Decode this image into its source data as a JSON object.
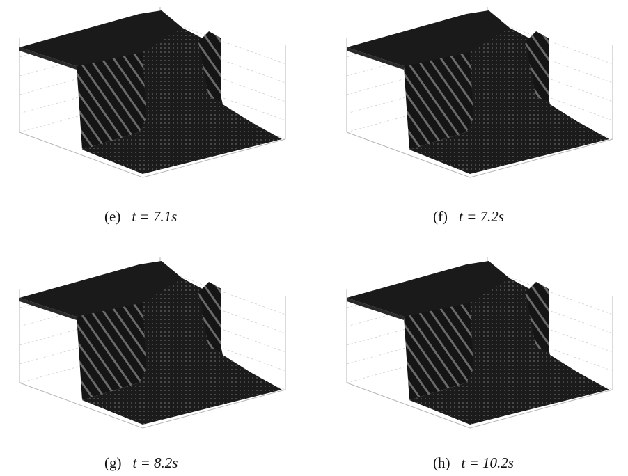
{
  "panels": [
    {
      "label": "(e)",
      "caption": "t = 7.1s"
    },
    {
      "label": "(f)",
      "caption": "t = 7.2s"
    },
    {
      "label": "(g)",
      "caption": "t = 8.2s"
    },
    {
      "label": "(h)",
      "caption": "t = 10.2s"
    }
  ]
}
